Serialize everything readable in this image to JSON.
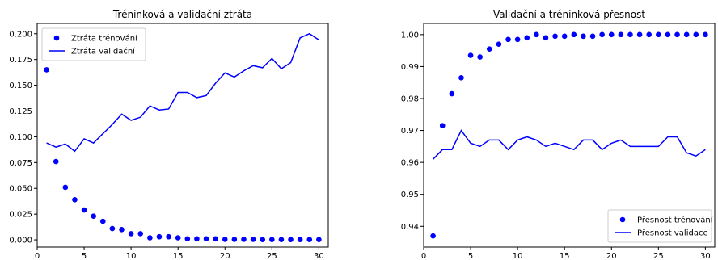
{
  "colors": {
    "series": "#0000ff",
    "frame": "#000000",
    "legend_border": "#cccccc"
  },
  "chart_data": [
    {
      "type": "scatter+line",
      "title": "Tréninková a validační ztráta",
      "xlabel": "",
      "ylabel": "",
      "xlim": [
        0,
        31
      ],
      "ylim": [
        -0.007,
        0.21
      ],
      "xticks": [
        0,
        5,
        10,
        15,
        20,
        25,
        30
      ],
      "yticks": [
        "0.000",
        "0.025",
        "0.050",
        "0.075",
        "0.100",
        "0.125",
        "0.150",
        "0.175",
        "0.200"
      ],
      "legend_position": "top-left",
      "series": [
        {
          "name": "Ztráta trénování",
          "style": "points",
          "x": [
            1,
            2,
            3,
            4,
            5,
            6,
            7,
            8,
            9,
            10,
            11,
            12,
            13,
            14,
            15,
            16,
            17,
            18,
            19,
            20,
            21,
            22,
            23,
            24,
            25,
            26,
            27,
            28,
            29,
            30
          ],
          "values": [
            0.165,
            0.076,
            0.051,
            0.039,
            0.029,
            0.023,
            0.018,
            0.011,
            0.01,
            0.006,
            0.006,
            0.002,
            0.003,
            0.003,
            0.002,
            0.001,
            0.001,
            0.001,
            0.001,
            0.0005,
            0.0005,
            0.0005,
            0.0005,
            0.0003,
            0.0003,
            0.0003,
            0.0003,
            0.0003,
            0.0003,
            0.0003
          ]
        },
        {
          "name": "Ztráta validační",
          "style": "line",
          "x": [
            1,
            2,
            3,
            4,
            5,
            6,
            7,
            8,
            9,
            10,
            11,
            12,
            13,
            14,
            15,
            16,
            17,
            18,
            19,
            20,
            21,
            22,
            23,
            24,
            25,
            26,
            27,
            28,
            29,
            30
          ],
          "values": [
            0.094,
            0.09,
            0.093,
            0.086,
            0.098,
            0.094,
            0.103,
            0.112,
            0.122,
            0.116,
            0.119,
            0.13,
            0.126,
            0.127,
            0.143,
            0.143,
            0.138,
            0.14,
            0.152,
            0.162,
            0.158,
            0.164,
            0.169,
            0.167,
            0.176,
            0.166,
            0.172,
            0.196,
            0.2,
            0.194
          ]
        }
      ]
    },
    {
      "type": "scatter+line",
      "title": "Validační a tréninková přesnost",
      "xlabel": "",
      "ylabel": "",
      "xlim": [
        0,
        31
      ],
      "ylim": [
        0.9335,
        1.0035
      ],
      "xticks": [
        0,
        5,
        10,
        15,
        20,
        25,
        30
      ],
      "yticks": [
        "0.94",
        "0.95",
        "0.96",
        "0.97",
        "0.98",
        "0.99",
        "1.00"
      ],
      "legend_position": "bottom-right",
      "series": [
        {
          "name": "Přesnost trénování",
          "style": "points",
          "x": [
            1,
            2,
            3,
            4,
            5,
            6,
            7,
            8,
            9,
            10,
            11,
            12,
            13,
            14,
            15,
            16,
            17,
            18,
            19,
            20,
            21,
            22,
            23,
            24,
            25,
            26,
            27,
            28,
            29,
            30
          ],
          "values": [
            0.937,
            0.9715,
            0.9815,
            0.9865,
            0.9935,
            0.993,
            0.9955,
            0.997,
            0.9985,
            0.9985,
            0.999,
            1.0,
            0.999,
            0.9995,
            0.9995,
            1.0,
            0.9995,
            0.9995,
            1.0,
            1.0,
            1.0,
            1.0,
            1.0,
            1.0,
            1.0,
            1.0,
            1.0,
            1.0,
            1.0,
            1.0
          ]
        },
        {
          "name": "Přesnost validace",
          "style": "line",
          "x": [
            1,
            2,
            3,
            4,
            5,
            6,
            7,
            8,
            9,
            10,
            11,
            12,
            13,
            14,
            15,
            16,
            17,
            18,
            19,
            20,
            21,
            22,
            23,
            24,
            25,
            26,
            27,
            28,
            29,
            30
          ],
          "values": [
            0.961,
            0.964,
            0.964,
            0.97,
            0.966,
            0.965,
            0.967,
            0.967,
            0.964,
            0.967,
            0.968,
            0.967,
            0.965,
            0.966,
            0.965,
            0.964,
            0.967,
            0.967,
            0.964,
            0.966,
            0.967,
            0.965,
            0.965,
            0.965,
            0.965,
            0.968,
            0.968,
            0.963,
            0.962,
            0.964
          ]
        }
      ]
    }
  ]
}
